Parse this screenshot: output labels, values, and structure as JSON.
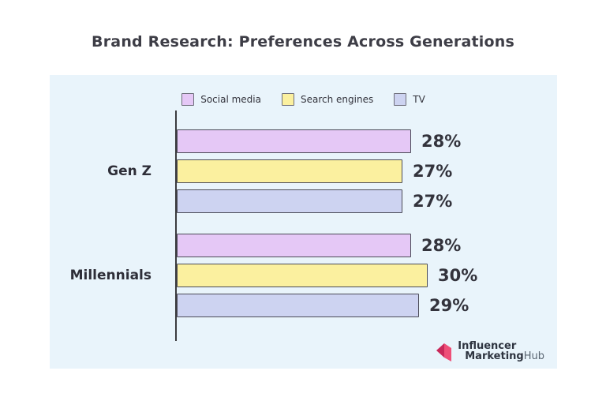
{
  "title": "Brand Research: Preferences Across Generations",
  "legend": [
    {
      "label": "Social media",
      "color": "#e5c8f6"
    },
    {
      "label": "Search engines",
      "color": "#fbf09f"
    },
    {
      "label": "TV",
      "color": "#cdd3f1"
    }
  ],
  "chart_data": {
    "type": "bar",
    "orientation": "horizontal",
    "categories": [
      "Gen Z",
      "Millennials"
    ],
    "series": [
      {
        "name": "Social media",
        "values": [
          28,
          28
        ],
        "color": "#e5c8f6"
      },
      {
        "name": "Search engines",
        "values": [
          27,
          30
        ],
        "color": "#fbf09f"
      },
      {
        "name": "TV",
        "values": [
          27,
          29
        ],
        "color": "#cdd3f1"
      }
    ],
    "value_suffix": "%",
    "xlim": [
      0,
      30
    ],
    "grid": false,
    "legend_position": "top",
    "title": "Brand Research: Preferences Across Generations",
    "xlabel": "",
    "ylabel": ""
  },
  "branding": {
    "line1": "Influencer",
    "line2_bold": "Marketing",
    "line2_light": "Hub",
    "icon_color_dark": "#c9295a",
    "icon_color_light": "#ee4f78"
  },
  "colors": {
    "panel_background": "#e9f4fb",
    "bar_border": "#4b4b57",
    "axis": "#3b3b3f",
    "text": "#33333c"
  }
}
